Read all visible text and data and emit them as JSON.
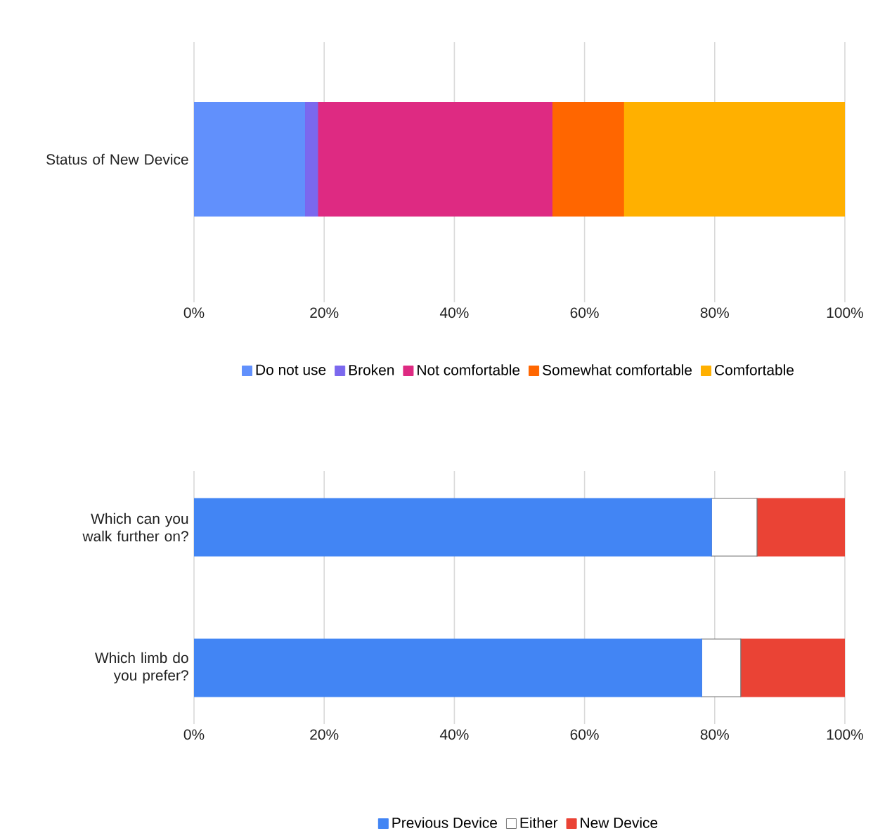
{
  "chart_data": [
    {
      "type": "bar",
      "orientation": "horizontal",
      "stacked": true,
      "categories": [
        "Status of New Device"
      ],
      "series": [
        {
          "name": "Do not use",
          "color": "#6190fc",
          "values": [
            17
          ]
        },
        {
          "name": "Broken",
          "color": "#7b68ee",
          "values": [
            2
          ]
        },
        {
          "name": "Not comfortable",
          "color": "#de2a82",
          "values": [
            36
          ]
        },
        {
          "name": "Somewhat comfortable",
          "color": "#ff6600",
          "values": [
            11
          ]
        },
        {
          "name": "Comfortable",
          "color": "#ffb000",
          "values": [
            34
          ]
        }
      ],
      "xlim": [
        0,
        100
      ],
      "xticks": [
        {
          "value": 0,
          "label": "0%"
        },
        {
          "value": 20,
          "label": "20%"
        },
        {
          "value": 40,
          "label": "40%"
        },
        {
          "value": 60,
          "label": "60%"
        },
        {
          "value": 80,
          "label": "80%"
        },
        {
          "value": 100,
          "label": "100%"
        }
      ],
      "grid": "x",
      "legend": "bottom"
    },
    {
      "type": "bar",
      "orientation": "horizontal",
      "stacked": true,
      "categories": [
        "Which can you walk further on?",
        "Which limb do you prefer?"
      ],
      "series": [
        {
          "name": "Previous Device",
          "color": "#4285f4",
          "values": [
            79.5,
            78
          ]
        },
        {
          "name": "Either",
          "color": "#ffffff",
          "values": [
            7,
            6
          ]
        },
        {
          "name": "New Device",
          "color": "#ea4335",
          "values": [
            13.5,
            16
          ]
        }
      ],
      "xlim": [
        0,
        100
      ],
      "xticks": [
        {
          "value": 0,
          "label": "0%"
        },
        {
          "value": 20,
          "label": "20%"
        },
        {
          "value": 40,
          "label": "40%"
        },
        {
          "value": 60,
          "label": "60%"
        },
        {
          "value": 80,
          "label": "80%"
        },
        {
          "value": 100,
          "label": "100%"
        }
      ],
      "grid": "x",
      "legend": "bottom"
    }
  ]
}
